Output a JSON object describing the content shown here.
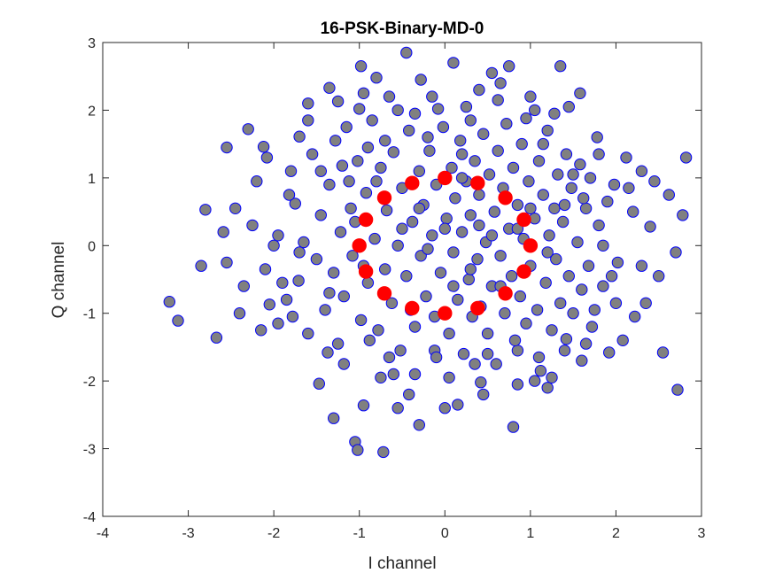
{
  "chart_data": {
    "type": "scatter",
    "title": "16-PSK-Binary-MD-0",
    "xlabel": "I channel",
    "ylabel": "Q channel",
    "xlim": [
      -4,
      3
    ],
    "ylim": [
      -4,
      3
    ],
    "xticks": [
      -4,
      -3,
      -2,
      -1,
      0,
      1,
      2,
      3
    ],
    "yticks": [
      -4,
      -3,
      -2,
      -1,
      0,
      1,
      2,
      3
    ],
    "xtick_labels": [
      "-4",
      "-3",
      "-2",
      "-1",
      "0",
      "1",
      "2",
      "3"
    ],
    "ytick_labels": [
      "-4",
      "-3",
      "-2",
      "-1",
      "0",
      "1",
      "2",
      "3"
    ],
    "grid": false,
    "series": [
      {
        "marker_face": "#808080",
        "marker_edge": "#0000ff",
        "points": [
          [
            -3.22,
            -0.83
          ],
          [
            -3.12,
            -1.11
          ],
          [
            -2.85,
            -0.3
          ],
          [
            -2.8,
            0.53
          ],
          [
            -2.67,
            -1.36
          ],
          [
            -2.59,
            0.2
          ],
          [
            -2.55,
            1.45
          ],
          [
            -2.3,
            1.72
          ],
          [
            -2.12,
            1.46
          ],
          [
            -2.08,
            1.3
          ],
          [
            -2.05,
            -0.87
          ],
          [
            -1.95,
            -1.15
          ],
          [
            -1.8,
            1.1
          ],
          [
            -1.75,
            0.62
          ],
          [
            -1.71,
            -0.52
          ],
          [
            -1.7,
            1.61
          ],
          [
            -1.6,
            2.1
          ],
          [
            -1.47,
            -2.04
          ],
          [
            -1.37,
            -1.58
          ],
          [
            -1.35,
            2.33
          ],
          [
            -1.3,
            -2.55
          ],
          [
            -1.25,
            2.13
          ],
          [
            -1.2,
            1.18
          ],
          [
            -1.18,
            -0.75
          ],
          [
            -1.12,
            0.95
          ],
          [
            -1.05,
            -2.9
          ],
          [
            -1.02,
            -3.02
          ],
          [
            -1.0,
            2.02
          ],
          [
            -0.98,
            2.65
          ],
          [
            -0.95,
            -2.36
          ],
          [
            -0.9,
            1.45
          ],
          [
            -0.88,
            -1.4
          ],
          [
            -0.8,
            2.48
          ],
          [
            -0.72,
            -3.05
          ],
          [
            -0.7,
            1.55
          ],
          [
            -0.65,
            2.2
          ],
          [
            -0.6,
            -1.9
          ],
          [
            -0.55,
            -2.4
          ],
          [
            -0.45,
            2.85
          ],
          [
            -0.42,
            -2.2
          ],
          [
            -0.35,
            1.95
          ],
          [
            -0.3,
            -2.65
          ],
          [
            -0.28,
            2.45
          ],
          [
            -0.2,
            1.6
          ],
          [
            -0.12,
            -1.55
          ],
          [
            -0.08,
            2.02
          ],
          [
            0.0,
            -2.4
          ],
          [
            0.1,
            2.7
          ],
          [
            0.15,
            -2.35
          ],
          [
            0.2,
            1.35
          ],
          [
            0.3,
            1.85
          ],
          [
            0.35,
            -1.75
          ],
          [
            0.4,
            2.3
          ],
          [
            0.42,
            -2.02
          ],
          [
            0.5,
            -1.6
          ],
          [
            0.55,
            2.55
          ],
          [
            0.62,
            2.15
          ],
          [
            0.75,
            2.65
          ],
          [
            0.8,
            -2.68
          ],
          [
            0.85,
            -1.55
          ],
          [
            0.95,
            1.88
          ],
          [
            1.0,
            2.2
          ],
          [
            1.05,
            -2.0
          ],
          [
            1.1,
            -1.65
          ],
          [
            1.15,
            1.5
          ],
          [
            1.2,
            -2.1
          ],
          [
            1.28,
            1.95
          ],
          [
            1.35,
            2.65
          ],
          [
            1.42,
            -1.38
          ],
          [
            1.5,
            1.05
          ],
          [
            1.58,
            2.25
          ],
          [
            1.6,
            -1.7
          ],
          [
            1.65,
            0.55
          ],
          [
            1.72,
            -1.2
          ],
          [
            1.78,
            1.6
          ],
          [
            1.85,
            -0.6
          ],
          [
            1.92,
            -1.58
          ],
          [
            1.98,
            0.9
          ],
          [
            2.02,
            -0.25
          ],
          [
            2.08,
            -1.4
          ],
          [
            2.12,
            1.3
          ],
          [
            2.2,
            0.5
          ],
          [
            2.22,
            -1.05
          ],
          [
            2.3,
            1.1
          ],
          [
            2.35,
            -0.85
          ],
          [
            2.4,
            0.28
          ],
          [
            2.45,
            0.95
          ],
          [
            2.5,
            -0.45
          ],
          [
            2.55,
            -1.58
          ],
          [
            2.62,
            0.75
          ],
          [
            2.7,
            -0.1
          ],
          [
            2.72,
            -2.13
          ],
          [
            2.78,
            0.45
          ],
          [
            2.82,
            1.3
          ],
          [
            -2.55,
            -0.25
          ],
          [
            -2.45,
            0.55
          ],
          [
            -2.35,
            -0.6
          ],
          [
            -2.25,
            0.3
          ],
          [
            -2.2,
            0.95
          ],
          [
            -2.1,
            -0.35
          ],
          [
            -1.95,
            0.15
          ],
          [
            -1.9,
            -0.55
          ],
          [
            -1.82,
            0.75
          ],
          [
            -1.78,
            -1.05
          ],
          [
            -1.65,
            0.05
          ],
          [
            -1.6,
            -1.3
          ],
          [
            -1.55,
            1.35
          ],
          [
            -1.5,
            -0.2
          ],
          [
            -1.45,
            0.45
          ],
          [
            -1.4,
            -0.95
          ],
          [
            -1.35,
            0.9
          ],
          [
            -1.3,
            -0.4
          ],
          [
            -1.28,
            1.55
          ],
          [
            -1.22,
            0.2
          ],
          [
            -1.18,
            -1.75
          ],
          [
            -1.1,
            0.55
          ],
          [
            -1.08,
            -0.15
          ],
          [
            -1.02,
            1.25
          ],
          [
            -0.98,
            -1.1
          ],
          [
            -0.92,
            0.78
          ],
          [
            -0.9,
            -0.55
          ],
          [
            -0.85,
            1.85
          ],
          [
            -0.82,
            0.1
          ],
          [
            -0.78,
            -1.25
          ],
          [
            -0.75,
            1.15
          ],
          [
            -0.7,
            -0.35
          ],
          [
            -0.68,
            0.52
          ],
          [
            -0.62,
            -0.85
          ],
          [
            -0.6,
            1.38
          ],
          [
            -0.55,
            0.0
          ],
          [
            -0.52,
            -1.55
          ],
          [
            -0.5,
            0.85
          ],
          [
            -0.45,
            -0.45
          ],
          [
            -0.42,
            1.7
          ],
          [
            -0.38,
            0.35
          ],
          [
            -0.35,
            -1.2
          ],
          [
            -0.3,
            1.1
          ],
          [
            -0.28,
            -0.15
          ],
          [
            -0.25,
            0.6
          ],
          [
            -0.22,
            -0.75
          ],
          [
            -0.18,
            1.4
          ],
          [
            -0.15,
            0.15
          ],
          [
            -0.12,
            -1.05
          ],
          [
            -0.1,
            0.9
          ],
          [
            -0.05,
            -0.4
          ],
          [
            -0.02,
            1.75
          ],
          [
            0.02,
            0.4
          ],
          [
            0.05,
            -1.3
          ],
          [
            0.08,
            1.15
          ],
          [
            0.1,
            -0.1
          ],
          [
            0.12,
            0.7
          ],
          [
            0.15,
            -0.8
          ],
          [
            0.18,
            1.55
          ],
          [
            0.2,
            0.2
          ],
          [
            0.22,
            -1.6
          ],
          [
            0.25,
            0.95
          ],
          [
            0.28,
            -0.5
          ],
          [
            0.3,
            0.45
          ],
          [
            0.32,
            -1.05
          ],
          [
            0.35,
            1.25
          ],
          [
            0.38,
            -0.2
          ],
          [
            0.4,
            0.75
          ],
          [
            0.42,
            -0.9
          ],
          [
            0.45,
            1.65
          ],
          [
            0.48,
            0.05
          ],
          [
            0.5,
            -1.3
          ],
          [
            0.52,
            1.05
          ],
          [
            0.55,
            -0.6
          ],
          [
            0.58,
            0.5
          ],
          [
            0.6,
            -1.75
          ],
          [
            0.62,
            1.4
          ],
          [
            0.65,
            -0.15
          ],
          [
            0.68,
            0.85
          ],
          [
            0.7,
            -1.0
          ],
          [
            0.72,
            1.8
          ],
          [
            0.75,
            0.25
          ],
          [
            0.78,
            -0.45
          ],
          [
            0.8,
            1.15
          ],
          [
            0.82,
            -1.4
          ],
          [
            0.85,
            0.6
          ],
          [
            0.88,
            -0.75
          ],
          [
            0.9,
            1.5
          ],
          [
            0.92,
            0.1
          ],
          [
            0.95,
            -1.15
          ],
          [
            0.98,
            0.95
          ],
          [
            1.0,
            -0.3
          ],
          [
            1.05,
            0.4
          ],
          [
            1.08,
            -0.95
          ],
          [
            1.1,
            1.25
          ],
          [
            1.12,
            -1.85
          ],
          [
            1.15,
            0.75
          ],
          [
            1.18,
            -0.55
          ],
          [
            1.2,
            1.7
          ],
          [
            1.22,
            0.15
          ],
          [
            1.25,
            -1.25
          ],
          [
            1.28,
            0.55
          ],
          [
            1.3,
            -0.2
          ],
          [
            1.32,
            1.05
          ],
          [
            1.35,
            -0.85
          ],
          [
            1.38,
            0.35
          ],
          [
            1.4,
            -1.55
          ],
          [
            1.42,
            1.35
          ],
          [
            1.45,
            -0.45
          ],
          [
            1.48,
            0.85
          ],
          [
            1.5,
            -1.0
          ],
          [
            1.55,
            0.05
          ],
          [
            1.58,
            1.2
          ],
          [
            1.6,
            -0.65
          ],
          [
            1.62,
            0.7
          ],
          [
            1.68,
            -0.3
          ],
          [
            1.7,
            1.0
          ],
          [
            1.75,
            -0.95
          ],
          [
            1.8,
            0.3
          ],
          [
            1.85,
            0.0
          ],
          [
            1.9,
            0.65
          ],
          [
            1.95,
            -0.45
          ],
          [
            -2.0,
            0.0
          ],
          [
            -1.7,
            -0.1
          ],
          [
            -1.45,
            1.1
          ],
          [
            -1.25,
            -1.45
          ],
          [
            -1.05,
            0.35
          ],
          [
            -0.95,
            -0.3
          ],
          [
            -0.8,
            0.95
          ],
          [
            -0.65,
            -1.65
          ],
          [
            -0.5,
            0.25
          ],
          [
            -0.4,
            -0.95
          ],
          [
            -0.3,
            0.55
          ],
          [
            -0.2,
            -0.05
          ],
          [
            -0.1,
            -1.65
          ],
          [
            0.0,
            0.25
          ],
          [
            0.1,
            -0.6
          ],
          [
            0.2,
            1.0
          ],
          [
            0.3,
            -0.35
          ],
          [
            0.4,
            0.3
          ],
          [
            0.55,
            0.15
          ],
          [
            0.65,
            -0.6
          ],
          [
            0.85,
            0.25
          ],
          [
            1.0,
            0.55
          ],
          [
            1.2,
            -0.1
          ],
          [
            1.4,
            0.6
          ],
          [
            -2.4,
            -1.0
          ],
          [
            -2.15,
            -1.25
          ],
          [
            -1.85,
            -0.8
          ],
          [
            -1.6,
            1.85
          ],
          [
            -1.35,
            -0.7
          ],
          [
            -1.15,
            1.75
          ],
          [
            -0.95,
            2.25
          ],
          [
            -0.75,
            -1.95
          ],
          [
            -0.55,
            2.0
          ],
          [
            -0.35,
            -1.9
          ],
          [
            -0.15,
            2.2
          ],
          [
            0.05,
            -1.95
          ],
          [
            0.25,
            2.05
          ],
          [
            0.45,
            -2.2
          ],
          [
            0.65,
            2.4
          ],
          [
            0.85,
            -2.05
          ],
          [
            1.05,
            2.0
          ],
          [
            1.25,
            -1.95
          ],
          [
            1.45,
            2.05
          ],
          [
            1.65,
            -1.45
          ],
          [
            1.8,
            1.35
          ],
          [
            2.0,
            -0.85
          ],
          [
            2.15,
            0.85
          ],
          [
            2.3,
            -0.3
          ]
        ]
      },
      {
        "marker_face": "#ff0000",
        "marker_edge": "#ff0000",
        "points": [
          [
            1.0,
            0.0
          ],
          [
            0.924,
            0.383
          ],
          [
            0.707,
            0.707
          ],
          [
            0.383,
            0.924
          ],
          [
            0.0,
            1.0
          ],
          [
            -0.383,
            0.924
          ],
          [
            -0.707,
            0.707
          ],
          [
            -0.924,
            0.383
          ],
          [
            -1.0,
            0.0
          ],
          [
            -0.924,
            -0.383
          ],
          [
            -0.707,
            -0.707
          ],
          [
            -0.383,
            -0.924
          ],
          [
            0.0,
            -1.0
          ],
          [
            0.383,
            -0.924
          ],
          [
            0.707,
            -0.707
          ],
          [
            0.924,
            -0.383
          ]
        ]
      }
    ]
  }
}
